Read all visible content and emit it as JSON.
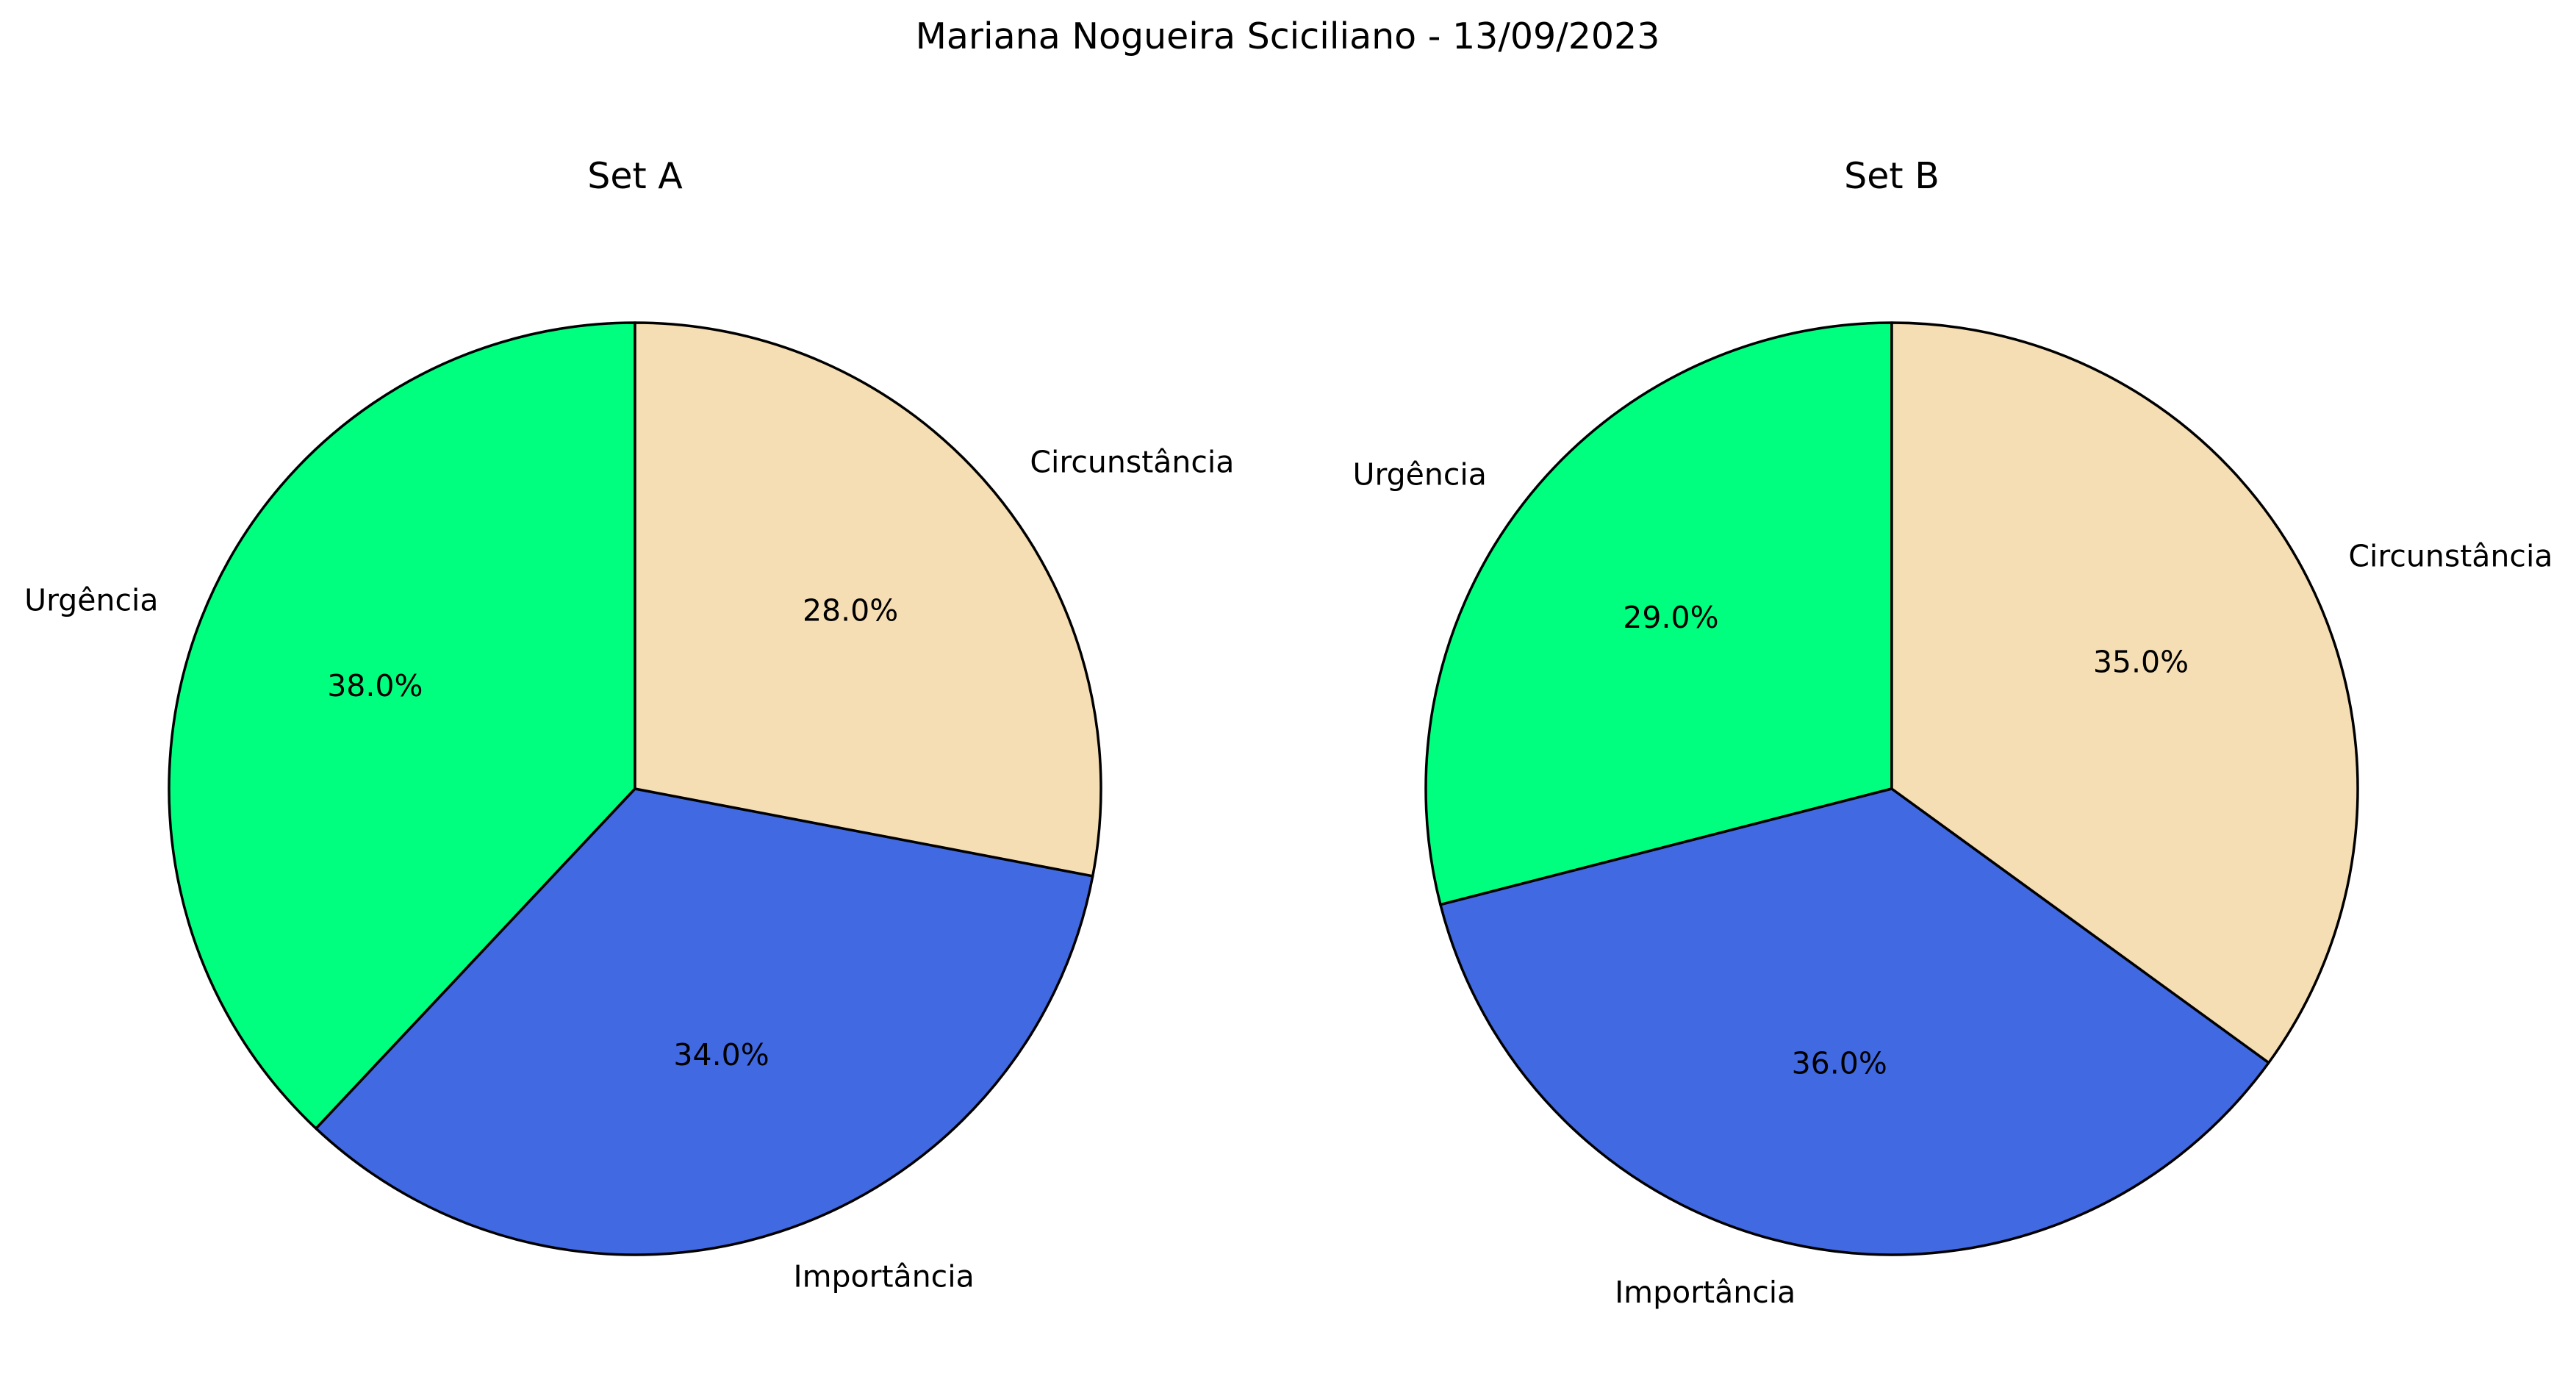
{
  "figure": {
    "title": "Mariana Nogueira Sciciliano - 13/09/2023"
  },
  "chart_data": [
    {
      "type": "pie",
      "title": "Set A",
      "labels": [
        "Urgência",
        "Importância",
        "Circunstância"
      ],
      "values": [
        38.0,
        34.0,
        28.0
      ],
      "percent_labels": [
        "38.0%",
        "34.0%",
        "28.0%"
      ],
      "colors": [
        "#00ff7f",
        "#4169e1",
        "#f5deb3"
      ],
      "start_angle_deg": 90,
      "direction": "counterclockwise",
      "edgecolor": "#000000"
    },
    {
      "type": "pie",
      "title": "Set B",
      "labels": [
        "Urgência",
        "Importância",
        "Circunstância"
      ],
      "values": [
        29.0,
        36.0,
        35.0
      ],
      "percent_labels": [
        "29.0%",
        "36.0%",
        "35.0%"
      ],
      "colors": [
        "#00ff7f",
        "#4169e1",
        "#f5deb3"
      ],
      "start_angle_deg": 90,
      "direction": "counterclockwise",
      "edgecolor": "#000000"
    }
  ]
}
